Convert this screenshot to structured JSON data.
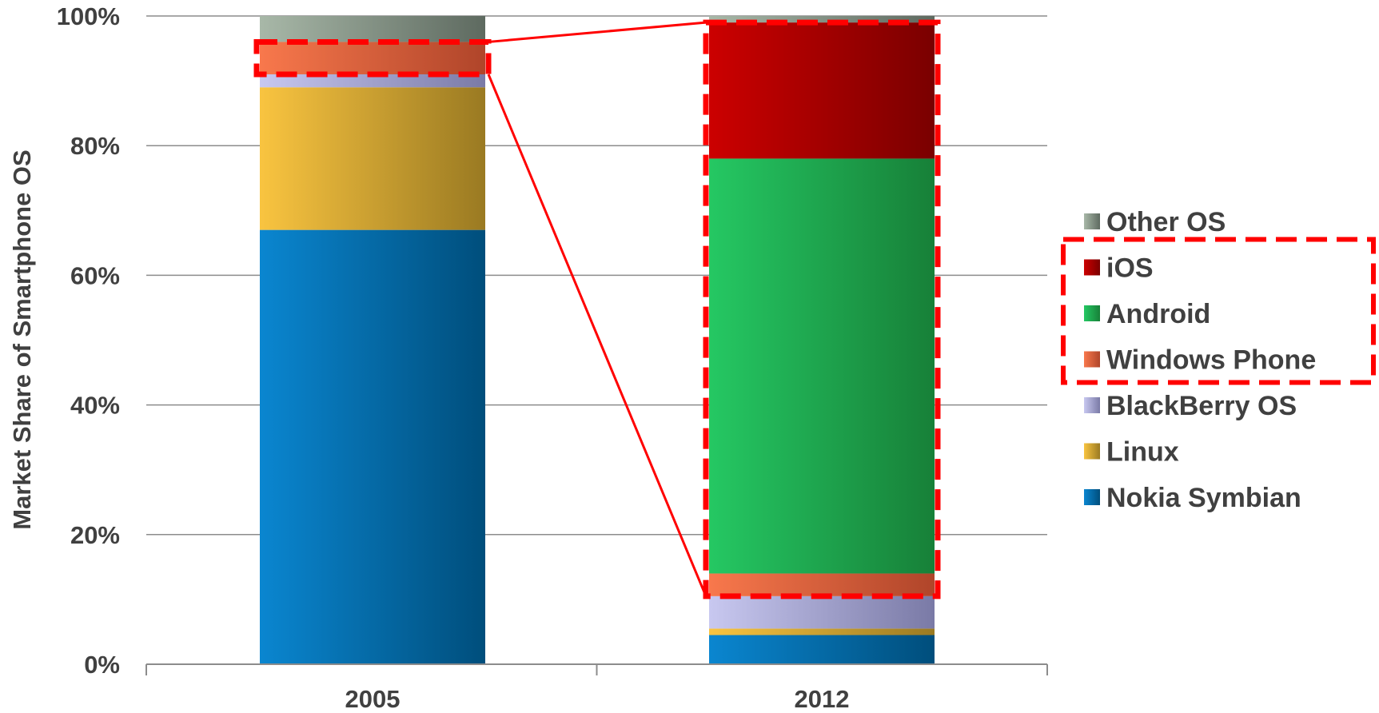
{
  "chart_data": {
    "type": "bar",
    "stacked": true,
    "normalized_percent": true,
    "title": "",
    "ylabel": "Market Share of Smartphone OS",
    "xlabel": "",
    "ylim": [
      0,
      100
    ],
    "y_ticks": [
      "0%",
      "20%",
      "40%",
      "60%",
      "80%",
      "100%"
    ],
    "y_tick_values": [
      0,
      20,
      40,
      60,
      80,
      100
    ],
    "grid": "horizontal",
    "legend_position": "right",
    "categories": [
      "2005",
      "2012"
    ],
    "series": [
      {
        "name": "Nokia Symbian",
        "values": [
          67,
          4.5
        ],
        "color": "#0A86D0",
        "color_dark": "#004E7C"
      },
      {
        "name": "Linux",
        "values": [
          22,
          1
        ],
        "color": "#F9C440",
        "color_dark": "#9A7A22"
      },
      {
        "name": "BlackBerry OS",
        "values": [
          2,
          5
        ],
        "color": "#C8C8F0",
        "color_dark": "#7A7AA6"
      },
      {
        "name": "Windows Phone",
        "values": [
          5,
          3.5
        ],
        "color": "#F8784C",
        "color_dark": "#B0452A"
      },
      {
        "name": "Android",
        "values": [
          0,
          64
        ],
        "color": "#25C863",
        "color_dark": "#178038"
      },
      {
        "name": "iOS",
        "values": [
          0,
          21
        ],
        "color": "#CC0000",
        "color_dark": "#7A0000"
      },
      {
        "name": "Other OS",
        "values": [
          4,
          1
        ],
        "color": "#A8B8A8",
        "color_dark": "#5E6A60"
      }
    ],
    "legend_order": [
      "Other OS",
      "iOS",
      "Android",
      "Windows Phone",
      "BlackBerry OS",
      "Linux",
      "Nokia Symbian"
    ],
    "highlight": {
      "color": "#FF0000",
      "series": [
        "iOS",
        "Android",
        "Windows Phone"
      ]
    }
  }
}
